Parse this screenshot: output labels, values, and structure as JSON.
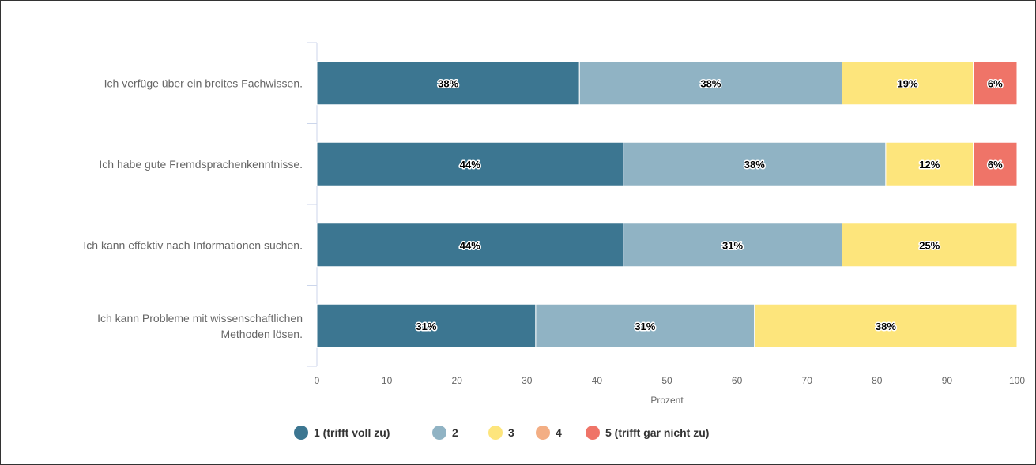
{
  "chart_data": {
    "type": "bar",
    "orientation": "horizontal",
    "stacked": true,
    "categories": [
      [
        "Ich verfüge über ein breites Fachwissen."
      ],
      [
        "Ich habe gute Fremdsprachenkenntnisse."
      ],
      [
        "Ich kann effektiv nach Informationen suchen."
      ],
      [
        "Ich kann Probleme mit wissenschaftlichen",
        "Methoden lösen."
      ]
    ],
    "series": [
      {
        "name": "1 (trifft voll zu)",
        "color": "#3c7691",
        "values": [
          37.5,
          43.75,
          43.75,
          31.25
        ],
        "labels": [
          "38%",
          "44%",
          "44%",
          "31%"
        ]
      },
      {
        "name": "2",
        "color": "#90b3c4",
        "values": [
          37.5,
          37.5,
          31.25,
          31.25
        ],
        "labels": [
          "38%",
          "38%",
          "31%",
          "31%"
        ]
      },
      {
        "name": "3",
        "color": "#fde57c",
        "values": [
          18.75,
          12.5,
          25,
          37.5
        ],
        "labels": [
          "19%",
          "12%",
          "25%",
          "38%"
        ]
      },
      {
        "name": "4",
        "color": "#f3ae84",
        "values": [
          0,
          0,
          0,
          0
        ],
        "labels": [
          "",
          "",
          "",
          ""
        ]
      },
      {
        "name": "5 (trifft gar nicht zu)",
        "color": "#ef7468",
        "values": [
          6.25,
          6.25,
          0,
          0
        ],
        "labels": [
          "6%",
          "6%",
          "",
          ""
        ]
      }
    ],
    "xlim": [
      0,
      100
    ],
    "xticks": [
      0,
      10,
      20,
      30,
      40,
      50,
      60,
      70,
      80,
      90,
      100
    ],
    "xlabel": "Prozent",
    "grid": false,
    "legend_position": "bottom"
  }
}
